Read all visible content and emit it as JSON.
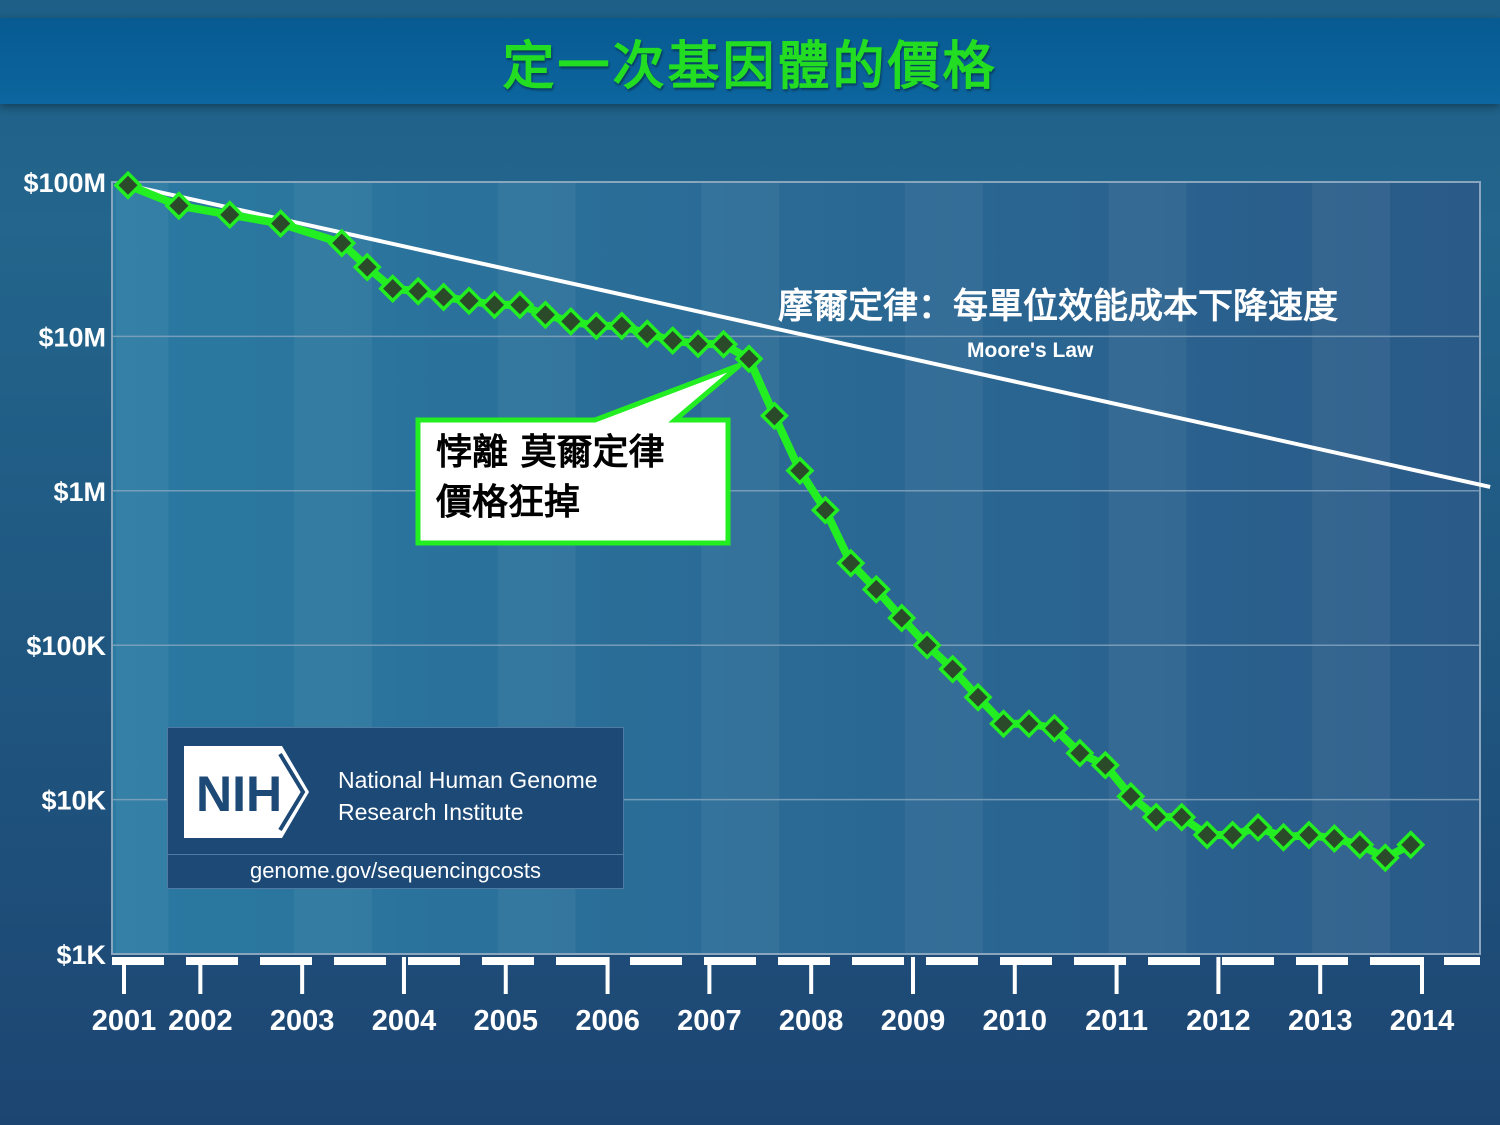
{
  "title": "定一次基因體的價格",
  "chart_data": {
    "type": "line",
    "yscale": "log",
    "ylim": [
      1000,
      100000000
    ],
    "xlim": [
      2001,
      2014.3
    ],
    "y_ticks": [
      {
        "value": 100000000,
        "label": "$100M"
      },
      {
        "value": 10000000,
        "label": "$10M"
      },
      {
        "value": 1000000,
        "label": "$1M"
      },
      {
        "value": 100000,
        "label": "$100K"
      },
      {
        "value": 10000,
        "label": "$10K"
      },
      {
        "value": 1000,
        "label": "$1K"
      }
    ],
    "x_ticks": [
      {
        "value": 2001,
        "label": "2001"
      },
      {
        "value": 2001.75,
        "label": "2002"
      },
      {
        "value": 2002.75,
        "label": "2003"
      },
      {
        "value": 2003.75,
        "label": "2004"
      },
      {
        "value": 2004.75,
        "label": "2005"
      },
      {
        "value": 2005.75,
        "label": "2006"
      },
      {
        "value": 2006.75,
        "label": "2007"
      },
      {
        "value": 2007.75,
        "label": "2008"
      },
      {
        "value": 2008.75,
        "label": "2009"
      },
      {
        "value": 2009.75,
        "label": "2010"
      },
      {
        "value": 2010.75,
        "label": "2011"
      },
      {
        "value": 2011.75,
        "label": "2012"
      },
      {
        "value": 2012.75,
        "label": "2013"
      },
      {
        "value": 2013.75,
        "label": "2014"
      }
    ],
    "grid": true,
    "series": [
      {
        "color": "#22ee22",
        "marker_color": "#2a4a2a",
        "points": [
          [
            2001.0,
            95300000
          ],
          [
            2001.5,
            70200000
          ],
          [
            2002.0,
            61400000
          ],
          [
            2002.5,
            53800000
          ],
          [
            2003.1,
            40200000
          ],
          [
            2003.35,
            28100000
          ],
          [
            2003.6,
            20400000
          ],
          [
            2003.85,
            19600000
          ],
          [
            2004.1,
            18000000
          ],
          [
            2004.35,
            17000000
          ],
          [
            2004.6,
            16000000
          ],
          [
            2004.85,
            16000000
          ],
          [
            2005.1,
            13800000
          ],
          [
            2005.35,
            12500000
          ],
          [
            2005.6,
            11700000
          ],
          [
            2005.85,
            11700000
          ],
          [
            2006.1,
            10400000
          ],
          [
            2006.35,
            9400000
          ],
          [
            2006.6,
            8950000
          ],
          [
            2006.85,
            8900000
          ],
          [
            2007.1,
            7150000
          ],
          [
            2007.35,
            3060000
          ],
          [
            2007.6,
            1350000
          ],
          [
            2007.85,
            750000
          ],
          [
            2008.1,
            340000
          ],
          [
            2008.35,
            230000
          ],
          [
            2008.6,
            150000
          ],
          [
            2008.85,
            100000
          ],
          [
            2009.1,
            70000
          ],
          [
            2009.35,
            46000
          ],
          [
            2009.6,
            31000
          ],
          [
            2009.85,
            31000
          ],
          [
            2010.1,
            29000
          ],
          [
            2010.35,
            20000
          ],
          [
            2010.6,
            16700
          ],
          [
            2010.85,
            10500
          ],
          [
            2011.1,
            7700
          ],
          [
            2011.35,
            7700
          ],
          [
            2011.6,
            5900
          ],
          [
            2011.85,
            5900
          ],
          [
            2012.1,
            6600
          ],
          [
            2012.35,
            5700
          ],
          [
            2012.6,
            5900
          ],
          [
            2012.85,
            5600
          ],
          [
            2013.1,
            5100
          ],
          [
            2013.35,
            4200
          ],
          [
            2013.6,
            5100
          ]
        ]
      },
      {
        "name": "Moore's Law",
        "color": "#ffffff",
        "points": [
          [
            2001.0,
            95300000
          ],
          [
            2014.38,
            1060000
          ]
        ]
      }
    ],
    "annotations": {
      "moore_cn": "摩爾定律：每單位效能成本下降速度",
      "moore_en": "Moore's Law"
    }
  },
  "callout": {
    "line1": "悖離 莫爾定律",
    "line2": "價格狂掉"
  },
  "nih": {
    "logo_text": "NIH",
    "org_line1": "National Human Genome",
    "org_line2": "Research Institute",
    "url": "genome.gov/sequencingcosts"
  }
}
